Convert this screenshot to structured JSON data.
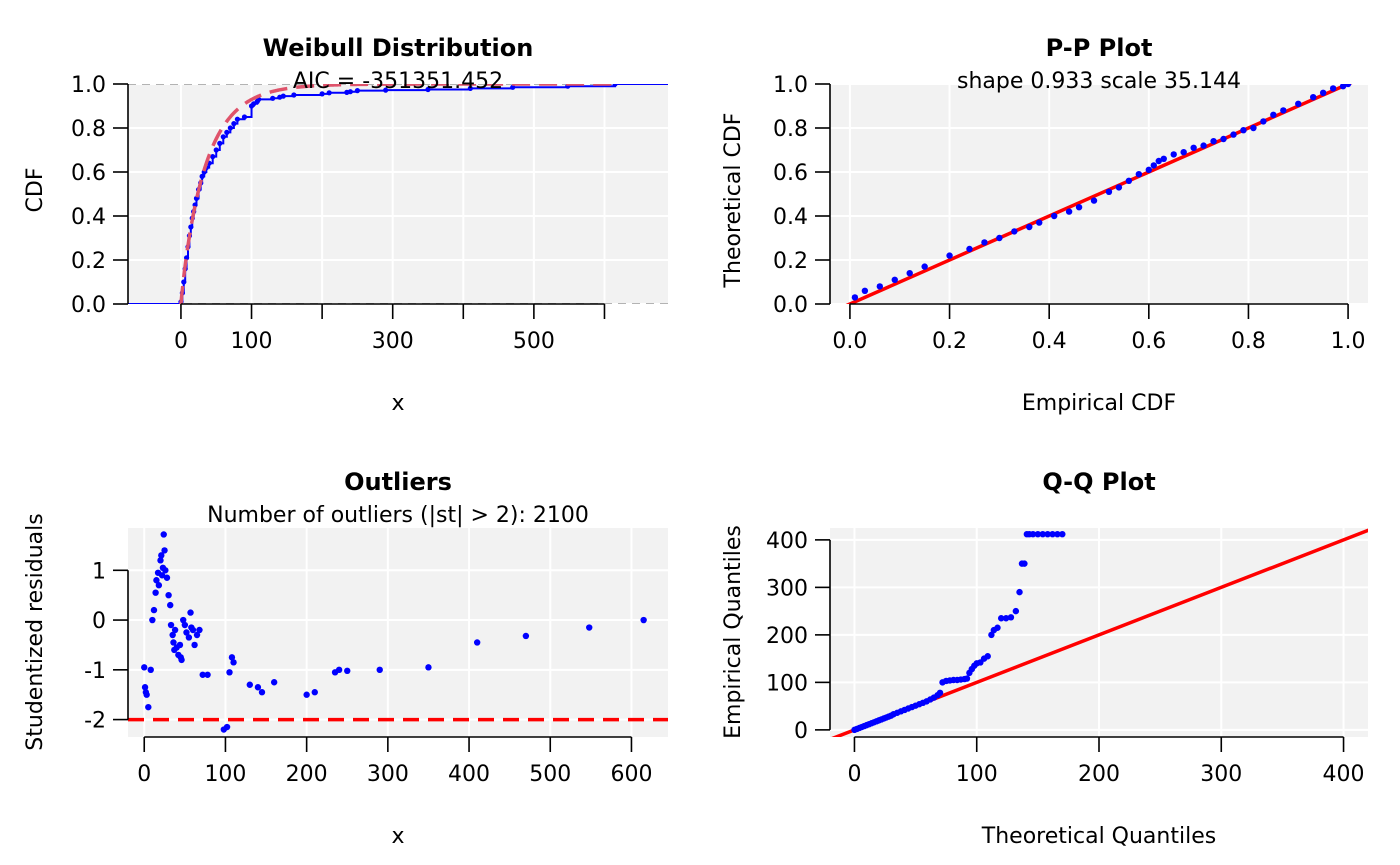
{
  "chart_data": [
    {
      "type": "line",
      "title": "Weibull Distribution",
      "subtitle": "AIC = -351351.452",
      "xlabel": "x",
      "ylabel": "CDF",
      "xlim": [
        -75,
        690
      ],
      "ylim": [
        0,
        1
      ],
      "xticks": [
        0,
        100,
        200,
        300,
        400,
        500,
        600
      ],
      "xtick_labels": [
        "0",
        "100",
        "",
        "300",
        "",
        "500",
        ""
      ],
      "yticks": [
        0.0,
        0.2,
        0.4,
        0.6,
        0.8,
        1.0
      ],
      "ytick_labels": [
        "0.0",
        "0.2",
        "0.4",
        "0.6",
        "0.8",
        "1.0"
      ],
      "grid": true,
      "hlines": [
        0,
        1
      ],
      "series": [
        {
          "kind": "step",
          "color": "#0000ff",
          "x": [
            -75,
            0,
            2,
            4,
            6,
            8,
            10,
            12,
            14,
            16,
            18,
            20,
            22,
            25,
            28,
            30,
            33,
            36,
            40,
            45,
            50,
            55,
            60,
            65,
            70,
            75,
            80,
            90,
            100,
            103,
            108,
            110,
            130,
            140,
            145,
            160,
            200,
            210,
            235,
            240,
            250,
            290,
            350,
            410,
            470,
            548,
            615,
            690
          ],
          "y": [
            0,
            0.01,
            0.05,
            0.1,
            0.16,
            0.21,
            0.26,
            0.31,
            0.35,
            0.39,
            0.42,
            0.45,
            0.48,
            0.52,
            0.55,
            0.58,
            0.6,
            0.62,
            0.64,
            0.67,
            0.7,
            0.73,
            0.76,
            0.78,
            0.8,
            0.82,
            0.84,
            0.85,
            0.9,
            0.91,
            0.92,
            0.93,
            0.935,
            0.94,
            0.945,
            0.95,
            0.955,
            0.96,
            0.962,
            0.965,
            0.97,
            0.972,
            0.975,
            0.98,
            0.985,
            0.99,
            1.0,
            1.0
          ]
        },
        {
          "kind": "fitted-cdf",
          "color": "#df536b",
          "shape": 0.933,
          "scale": 35.144,
          "x_from": 0,
          "x_to": 615
        }
      ]
    },
    {
      "type": "scatter",
      "title": "P-P Plot",
      "subtitle": "shape 0.933 scale 35.144",
      "xlabel": "Empirical CDF",
      "ylabel": "Theoretical CDF",
      "xlim": [
        -0.04,
        1.04
      ],
      "ylim": [
        0,
        1
      ],
      "xticks": [
        0.0,
        0.2,
        0.4,
        0.6,
        0.8,
        1.0
      ],
      "xtick_labels": [
        "0.0",
        "0.2",
        "0.4",
        "0.6",
        "0.8",
        "1.0"
      ],
      "yticks": [
        0.0,
        0.2,
        0.4,
        0.6,
        0.8,
        1.0
      ],
      "ytick_labels": [
        "0.0",
        "0.2",
        "0.4",
        "0.6",
        "0.8",
        "1.0"
      ],
      "grid": true,
      "reference_line": {
        "color": "#ff0000",
        "slope": 1,
        "intercept": 0
      },
      "points_color": "#0000ff",
      "x": [
        0.01,
        0.03,
        0.06,
        0.09,
        0.12,
        0.15,
        0.2,
        0.24,
        0.27,
        0.3,
        0.33,
        0.36,
        0.38,
        0.41,
        0.44,
        0.46,
        0.49,
        0.52,
        0.54,
        0.56,
        0.58,
        0.6,
        0.61,
        0.62,
        0.63,
        0.65,
        0.67,
        0.69,
        0.71,
        0.73,
        0.75,
        0.77,
        0.79,
        0.81,
        0.83,
        0.85,
        0.87,
        0.9,
        0.93,
        0.95,
        0.97,
        0.99,
        1.0
      ],
      "y": [
        0.03,
        0.06,
        0.08,
        0.11,
        0.14,
        0.17,
        0.22,
        0.25,
        0.28,
        0.3,
        0.33,
        0.35,
        0.37,
        0.4,
        0.42,
        0.44,
        0.47,
        0.51,
        0.53,
        0.56,
        0.59,
        0.61,
        0.63,
        0.65,
        0.66,
        0.68,
        0.69,
        0.71,
        0.72,
        0.74,
        0.75,
        0.77,
        0.79,
        0.8,
        0.83,
        0.86,
        0.88,
        0.91,
        0.94,
        0.96,
        0.98,
        0.99,
        1.0
      ]
    },
    {
      "type": "scatter",
      "title": "Outliers",
      "subtitle": "Number of outliers (|st| > 2):  2100",
      "xlabel": "x",
      "ylabel": "Studentized residuals",
      "xlim": [
        -20,
        645
      ],
      "ylim": [
        -2.35,
        1.85
      ],
      "xticks": [
        0,
        100,
        200,
        300,
        400,
        500,
        600
      ],
      "xtick_labels": [
        "0",
        "100",
        "200",
        "300",
        "400",
        "500",
        "600"
      ],
      "yticks": [
        -2,
        -1,
        0,
        1
      ],
      "ytick_labels": [
        "-2",
        "-1",
        "0",
        "1"
      ],
      "grid": true,
      "threshold_line": {
        "y": -2,
        "color": "#ff0000"
      },
      "points_color": "#0000ff",
      "x": [
        0,
        1,
        2,
        3,
        5,
        8,
        10,
        12,
        14,
        15,
        17,
        18,
        20,
        21,
        22,
        23,
        24,
        25,
        26,
        28,
        30,
        32,
        33,
        35,
        36,
        37,
        38,
        40,
        42,
        44,
        45,
        46,
        48,
        50,
        52,
        55,
        57,
        58,
        60,
        62,
        65,
        68,
        72,
        78,
        98,
        102,
        105,
        108,
        110,
        130,
        140,
        145,
        160,
        200,
        210,
        235,
        240,
        250,
        290,
        350,
        410,
        470,
        548,
        615
      ],
      "y": [
        -0.95,
        -1.35,
        -1.45,
        -1.5,
        -1.75,
        -1.0,
        0.0,
        0.2,
        0.55,
        0.8,
        0.95,
        0.7,
        1.2,
        1.3,
        0.9,
        1.05,
        1.72,
        1.4,
        1.0,
        0.85,
        0.5,
        0.3,
        -0.1,
        -0.3,
        -0.45,
        -0.6,
        -0.2,
        -0.55,
        -0.7,
        -0.5,
        -0.75,
        -0.8,
        0.0,
        -0.1,
        -0.25,
        -0.35,
        0.15,
        -0.15,
        -0.2,
        -0.5,
        -0.3,
        -0.2,
        -1.1,
        -1.1,
        -2.2,
        -2.15,
        -1.05,
        -0.75,
        -0.85,
        -1.3,
        -1.35,
        -1.45,
        -1.25,
        -1.5,
        -1.45,
        -1.05,
        -1.0,
        -1.02,
        -1.0,
        -0.95,
        -0.45,
        -0.32,
        -0.15,
        0.0
      ]
    },
    {
      "type": "scatter",
      "title": "Q-Q Plot",
      "xlabel": "Theoretical Quantiles",
      "ylabel": "Empirical Quantiles",
      "xlim": [
        -20,
        420
      ],
      "ylim": [
        -15,
        425
      ],
      "xticks": [
        0,
        100,
        200,
        300,
        400
      ],
      "xtick_labels": [
        "0",
        "100",
        "200",
        "300",
        "400"
      ],
      "yticks": [
        0,
        100,
        200,
        300,
        400
      ],
      "ytick_labels": [
        "0",
        "100",
        "200",
        "300",
        "400"
      ],
      "grid": true,
      "reference_line": {
        "color": "#ff0000",
        "slope": 1,
        "intercept": 0
      },
      "points_color": "#0000ff",
      "x": [
        0,
        2,
        4,
        6,
        8,
        10,
        12,
        14,
        16,
        18,
        20,
        22,
        24,
        26,
        28,
        30,
        32,
        35,
        38,
        41,
        44,
        47,
        50,
        53,
        56,
        59,
        62,
        65,
        68,
        70,
        72,
        75,
        78,
        81,
        84,
        87,
        90,
        92,
        94,
        96,
        98,
        100,
        103,
        106,
        109,
        112,
        114,
        117,
        120,
        124,
        128,
        132,
        135,
        137,
        139,
        141,
        143,
        146,
        150,
        154,
        158,
        162,
        166,
        170
      ],
      "y": [
        0,
        2,
        4,
        6,
        8,
        10,
        12,
        14,
        16,
        18,
        20,
        22,
        24,
        26,
        28,
        30,
        33,
        36,
        39,
        42,
        45,
        48,
        51,
        54,
        57,
        60,
        64,
        68,
        73,
        78,
        100,
        103,
        104,
        105,
        105,
        106,
        107,
        108,
        120,
        128,
        135,
        140,
        142,
        150,
        155,
        200,
        210,
        215,
        235,
        235,
        237,
        250,
        290,
        350,
        350,
        412,
        412,
        412,
        412,
        412,
        412,
        412,
        412,
        412
      ]
    }
  ]
}
